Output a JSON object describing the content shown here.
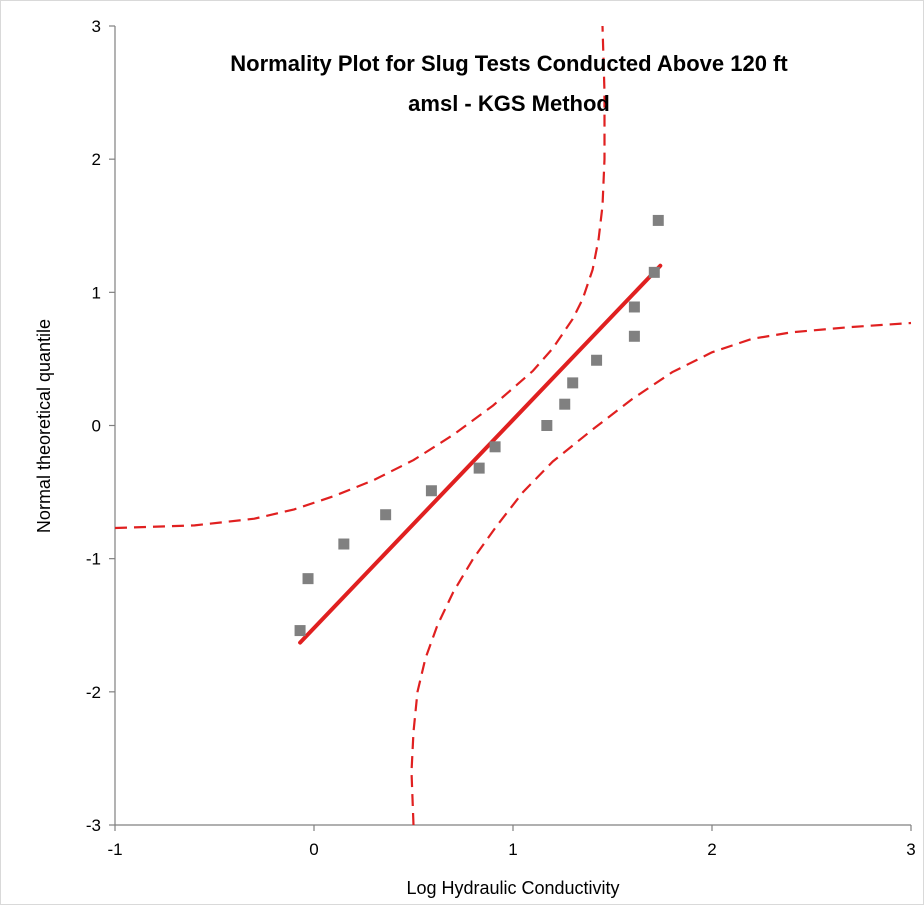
{
  "chart_data": {
    "type": "scatter",
    "title_lines": [
      "Normality Plot for Slug Tests Conducted Above 120 ft",
      "amsl - KGS Method"
    ],
    "xlabel": "Log Hydraulic Conductivity",
    "ylabel": "Normal theoretical quantile",
    "xlim": [
      -1,
      3
    ],
    "ylim": [
      -3,
      3
    ],
    "xticks": [
      -1,
      0,
      1,
      2,
      3
    ],
    "yticks": [
      -3,
      -2,
      -1,
      0,
      1,
      2,
      3
    ],
    "grid": false,
    "colors": {
      "points": "#808080",
      "fit_line": "#e02020",
      "confidence": "#e02020",
      "axis": "#808080"
    },
    "series": [
      {
        "type": "scatter",
        "marker": "square",
        "points": [
          [
            -0.07,
            -1.54
          ],
          [
            -0.03,
            -1.15
          ],
          [
            0.15,
            -0.89
          ],
          [
            0.36,
            -0.67
          ],
          [
            0.59,
            -0.49
          ],
          [
            0.83,
            -0.32
          ],
          [
            0.91,
            -0.16
          ],
          [
            1.17,
            0.0
          ],
          [
            1.26,
            0.16
          ],
          [
            1.3,
            0.32
          ],
          [
            1.42,
            0.49
          ],
          [
            1.61,
            0.67
          ],
          [
            1.61,
            0.89
          ],
          [
            1.71,
            1.15
          ],
          [
            1.73,
            1.54
          ]
        ]
      },
      {
        "type": "line",
        "style": "solid",
        "points": [
          [
            -0.07,
            -1.63
          ],
          [
            1.74,
            1.2
          ]
        ]
      },
      {
        "type": "line",
        "style": "dashed",
        "points": [
          [
            -1.0,
            -0.77
          ],
          [
            -0.6,
            -0.75
          ],
          [
            -0.3,
            -0.7
          ],
          [
            -0.1,
            -0.63
          ],
          [
            0.1,
            -0.53
          ],
          [
            0.3,
            -0.41
          ],
          [
            0.5,
            -0.26
          ],
          [
            0.7,
            -0.07
          ],
          [
            0.9,
            0.15
          ],
          [
            1.1,
            0.41
          ],
          [
            1.2,
            0.58
          ],
          [
            1.3,
            0.8
          ],
          [
            1.35,
            0.95
          ],
          [
            1.4,
            1.17
          ],
          [
            1.43,
            1.4
          ],
          [
            1.45,
            1.65
          ],
          [
            1.46,
            2.0
          ],
          [
            1.46,
            2.5
          ],
          [
            1.45,
            3.0
          ]
        ]
      },
      {
        "type": "line",
        "style": "dashed",
        "points": [
          [
            0.5,
            -3.0
          ],
          [
            0.49,
            -2.6
          ],
          [
            0.5,
            -2.3
          ],
          [
            0.52,
            -2.0
          ],
          [
            0.56,
            -1.75
          ],
          [
            0.62,
            -1.5
          ],
          [
            0.7,
            -1.25
          ],
          [
            0.8,
            -1.0
          ],
          [
            0.92,
            -0.75
          ],
          [
            1.05,
            -0.5
          ],
          [
            1.2,
            -0.27
          ],
          [
            1.4,
            -0.03
          ],
          [
            1.6,
            0.2
          ],
          [
            1.8,
            0.4
          ],
          [
            2.0,
            0.55
          ],
          [
            2.2,
            0.65
          ],
          [
            2.4,
            0.7
          ],
          [
            2.7,
            0.74
          ],
          [
            3.0,
            0.77
          ]
        ]
      }
    ]
  }
}
